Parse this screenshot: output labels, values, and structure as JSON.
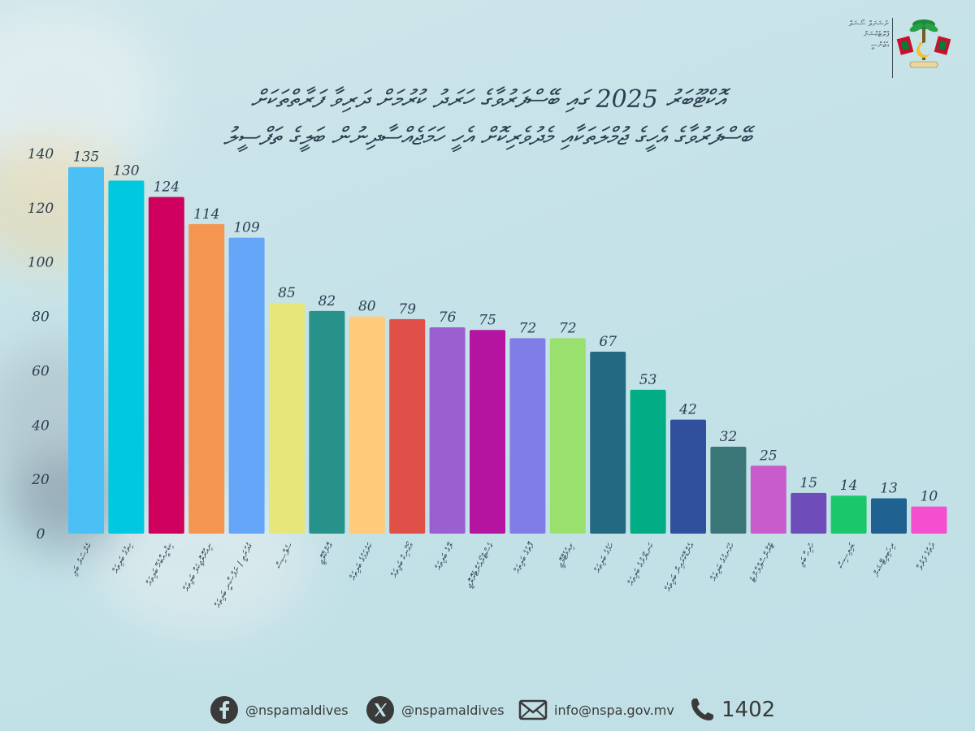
{
  "header": {
    "title_line1": "އޮކްޓޫބަރު 2025 ގައި ބޭސްފަރުވާގެ ހަރަދު ކުރުމަށް ދަރިވާ ފަރާތްތަކަށް",
    "title_line2": "ބޭސްފަރުވާގެ އެހީގެ ޖުމްލަތަކާއި މެދުވެރިކޮށް އެހީ ހަމަޖެއްސާދިނުން ބަލީގެ ތަފްސީލު",
    "logo_text": "ނެޝަނަލް ސޯޝަލް ޕްރޮޓެކްޝަން އެޖެންސީ"
  },
  "chart_data": {
    "type": "bar",
    "title": "",
    "xlabel": "",
    "ylabel": "",
    "ylim": [
      0,
      140
    ],
    "yticks": [
      0,
      20,
      40,
      60,
      80,
      100,
      120,
      140
    ],
    "grid": false,
    "legend": "none",
    "categories": [
      "ކެންސަރު ބަލި",
      "ހިތުގެ ބަލިތައް",
      "ކިޑްނީއާބެހޭ ބަލިތައް",
      "ނިއުރޮލޮޖިކަލް ބަލިތައް",
      "ގުދުރަތީ / ނަފްސާނީ ބަލިތައް",
      "ސެޕްސިސް",
      "އޮންކޮލޮޖީ",
      "ކަރުވަޅުގެ ބަލިތައް",
      "އޯގާނިކް ބަލިތައް",
      "ލޭގެ ބަލިތައް",
      "ގެސްޓްރޯއެންޓެރޮލޮޖީ",
      "ފޮތުގެ ބަލިތައް",
      "ރިއުމެޓޮލޮޖީ",
      "ހަމުގެ ބަލިތައް",
      "ކަނޑުފަރުގެ ބަލިތައް",
      "އެންޑޮކްރައިން ބަލިތައް",
      "ހުޅަނގުގެ ބަލިތައް",
      "ޓްރާންސްޕްލާންޓު",
      "ހުރިހާ ބަލި",
      "ޑައިލިސިސް",
      "ރިހަބިލިޓޭޝަން",
      "ދަތުގެ ފަރުވާ"
    ],
    "values": [
      135,
      130,
      124,
      114,
      109,
      85,
      82,
      80,
      79,
      76,
      75,
      72,
      72,
      67,
      53,
      42,
      32,
      25,
      15,
      14,
      13,
      10
    ],
    "colors": [
      "#4ac0f5",
      "#00c8e0",
      "#d0005e",
      "#f59552",
      "#66a6f8",
      "#e6e67a",
      "#27928a",
      "#fdcb7a",
      "#e05048",
      "#9b5fd0",
      "#b414a0",
      "#807ee6",
      "#9ae06e",
      "#226a82",
      "#00ad84",
      "#30509e",
      "#3a7678",
      "#c85ccc",
      "#6e4cba",
      "#1ac86a",
      "#1f6292",
      "#f54fd0"
    ]
  },
  "footer": {
    "facebook": "@nspamaldives",
    "x": "@nspamaldives",
    "email": "info@nspa.gov.mv",
    "phone": "1402"
  },
  "icons": {
    "facebook": "facebook-icon",
    "x": "x-icon",
    "email": "mail-icon",
    "phone": "phone-icon",
    "emblem": "state-emblem-icon"
  }
}
